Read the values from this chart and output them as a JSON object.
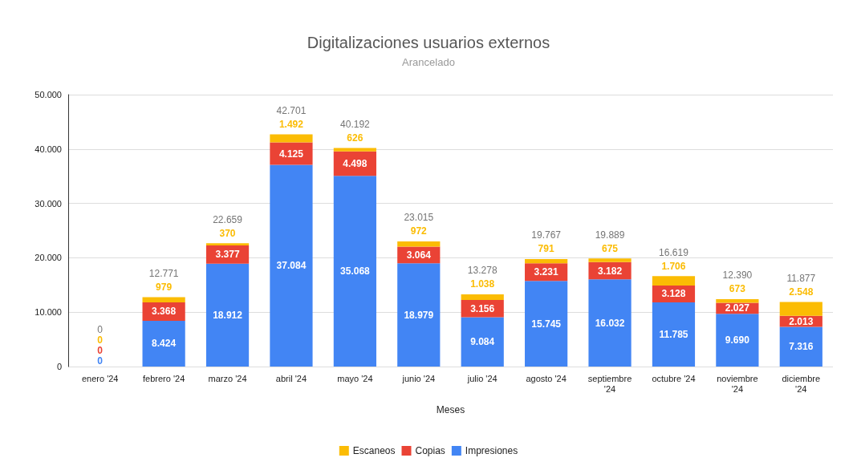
{
  "chart_data": {
    "type": "bar",
    "title": "Digitalizaciones usuarios externos",
    "subtitle": "Arancelado",
    "xlabel": "Meses",
    "categories": [
      "enero '24",
      "febrero '24",
      "marzo '24",
      "abril '24",
      "mayo '24",
      "junio '24",
      "julio '24",
      "agosto '24",
      "septiembre '24",
      "octubre '24",
      "noviembre '24",
      "diciembre '24"
    ],
    "stacked": true,
    "series": [
      {
        "name": "Impresiones",
        "color": "#4285f4",
        "values": [
          0,
          8424,
          18912,
          37084,
          35068,
          18979,
          9084,
          15745,
          16032,
          11785,
          9690,
          7316
        ],
        "value_labels": [
          "0",
          "8.424",
          "18.912",
          "37.084",
          "35.068",
          "18.979",
          "9.084",
          "15.745",
          "16.032",
          "11.785",
          "9.690",
          "7.316"
        ]
      },
      {
        "name": "Copias",
        "color": "#ea4335",
        "values": [
          0,
          3368,
          3377,
          4125,
          4498,
          3064,
          3156,
          3231,
          3182,
          3128,
          2027,
          2013
        ],
        "value_labels": [
          "0",
          "3.368",
          "3.377",
          "4.125",
          "4.498",
          "3.064",
          "3.156",
          "3.231",
          "3.182",
          "3.128",
          "2.027",
          "2.013"
        ]
      },
      {
        "name": "Escaneos",
        "color": "#fbbc04",
        "values": [
          0,
          979,
          370,
          1492,
          626,
          972,
          1038,
          791,
          675,
          1706,
          673,
          2548
        ],
        "value_labels": [
          "0",
          "979",
          "370",
          "1.492",
          "626",
          "972",
          "1.038",
          "791",
          "675",
          "1.706",
          "673",
          "2.548"
        ]
      }
    ],
    "totals": [
      "0",
      "12.771",
      "22.659",
      "42.701",
      "40.192",
      "23.015",
      "13.278",
      "19.767",
      "19.889",
      "16.619",
      "12.390",
      "11.877"
    ],
    "ylim": [
      0,
      50000
    ],
    "yticks": [
      {
        "value": 0,
        "label": "0"
      },
      {
        "value": 10000,
        "label": "10.000"
      },
      {
        "value": 20000,
        "label": "20.000"
      },
      {
        "value": 30000,
        "label": "30.000"
      },
      {
        "value": 40000,
        "label": "40.000"
      },
      {
        "value": 50000,
        "label": "50.000"
      }
    ],
    "grid": true,
    "legend": "bottom"
  }
}
